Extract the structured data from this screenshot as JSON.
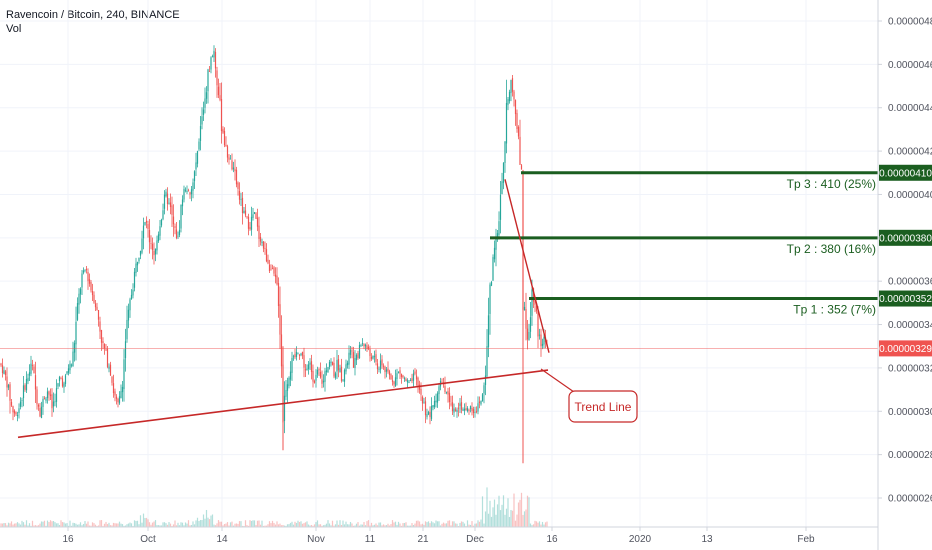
{
  "header": {
    "title": "Ravencoin / Bitcoin, 240, BINANCE",
    "volume_label": "Vol"
  },
  "colors": {
    "up": "#26a69a",
    "down": "#ef5350",
    "target_line": "#1b5e20",
    "trend_line": "#c62828",
    "price_line": "#ef5350",
    "badge_last": "#ef5350"
  },
  "chart_data": {
    "type": "candlestick",
    "symbol": "Ravencoin / Bitcoin",
    "interval": "240",
    "exchange": "BINANCE",
    "ylim": [
      2.45e-06,
      4.9e-06
    ],
    "y_ticks": [
      "0.00000260",
      "0.00000280",
      "0.00000300",
      "0.00000320",
      "0.00000340",
      "0.00000360",
      "0.00000380",
      "0.00000400",
      "0.00000420",
      "0.00000440",
      "0.00000460",
      "0.00000480"
    ],
    "x_ticks": [
      "16",
      "Oct",
      "14",
      "Nov",
      "11",
      "21",
      "Dec",
      "16",
      "2020",
      "13",
      "Feb"
    ],
    "last_price": "0.00000329",
    "targets": [
      {
        "name": "Tp 3",
        "price": "0.00000410",
        "label": "Tp 3 : 410 (25%)"
      },
      {
        "name": "Tp 2",
        "price": "0.00000380",
        "label": "Tp 2 : 380 (16%)"
      },
      {
        "name": "Tp 1",
        "price": "0.00000352",
        "label": "Tp 1 : 352 (7%)"
      }
    ],
    "trend_line": {
      "label": "Trend Line",
      "from": [
        "Sep 9",
        2.88e-06
      ],
      "to": [
        "Dec 15",
        3.19e-06
      ]
    },
    "downtrend_line": {
      "from": [
        "Dec 5",
        4.07e-06
      ],
      "to": [
        "Dec 15",
        3.27e-06
      ]
    },
    "price_path": [
      [
        0,
        322
      ],
      [
        4,
        318
      ],
      [
        8,
        312
      ],
      [
        12,
        301
      ],
      [
        16,
        298
      ],
      [
        20,
        304
      ],
      [
        24,
        310
      ],
      [
        28,
        316
      ],
      [
        32,
        322
      ],
      [
        36,
        308
      ],
      [
        40,
        300
      ],
      [
        44,
        306
      ],
      [
        48,
        310
      ],
      [
        52,
        302
      ],
      [
        56,
        308
      ],
      [
        60,
        316
      ],
      [
        64,
        312
      ],
      [
        68,
        320
      ],
      [
        72,
        322
      ],
      [
        74,
        330
      ],
      [
        78,
        350
      ],
      [
        82,
        362
      ],
      [
        86,
        366
      ],
      [
        90,
        358
      ],
      [
        94,
        352
      ],
      [
        98,
        344
      ],
      [
        102,
        332
      ],
      [
        106,
        326
      ],
      [
        110,
        320
      ],
      [
        114,
        308
      ],
      [
        118,
        302
      ],
      [
        122,
        312
      ],
      [
        126,
        336
      ],
      [
        130,
        350
      ],
      [
        134,
        362
      ],
      [
        138,
        372
      ],
      [
        142,
        382
      ],
      [
        146,
        388
      ],
      [
        150,
        378
      ],
      [
        154,
        370
      ],
      [
        158,
        382
      ],
      [
        162,
        392
      ],
      [
        166,
        400
      ],
      [
        170,
        394
      ],
      [
        174,
        384
      ],
      [
        178,
        380
      ],
      [
        182,
        398
      ],
      [
        186,
        404
      ],
      [
        190,
        398
      ],
      [
        194,
        408
      ],
      [
        198,
        420
      ],
      [
        202,
        436
      ],
      [
        206,
        448
      ],
      [
        210,
        460
      ],
      [
        214,
        466
      ],
      [
        218,
        448
      ],
      [
        222,
        432
      ],
      [
        226,
        420
      ],
      [
        230,
        416
      ],
      [
        234,
        410
      ],
      [
        238,
        402
      ],
      [
        242,
        394
      ],
      [
        246,
        388
      ],
      [
        250,
        386
      ],
      [
        254,
        392
      ],
      [
        258,
        382
      ],
      [
        262,
        378
      ],
      [
        266,
        372
      ],
      [
        270,
        366
      ],
      [
        274,
        362
      ],
      [
        278,
        356
      ],
      [
        281,
        330
      ],
      [
        283,
        300
      ],
      [
        286,
        312
      ],
      [
        290,
        320
      ],
      [
        294,
        324
      ],
      [
        298,
        328
      ],
      [
        302,
        326
      ],
      [
        306,
        318
      ],
      [
        310,
        322
      ],
      [
        314,
        314
      ],
      [
        318,
        318
      ],
      [
        322,
        312
      ],
      [
        326,
        320
      ],
      [
        330,
        324
      ],
      [
        334,
        318
      ],
      [
        338,
        322
      ],
      [
        342,
        316
      ],
      [
        346,
        320
      ],
      [
        350,
        328
      ],
      [
        354,
        322
      ],
      [
        358,
        326
      ],
      [
        362,
        332
      ],
      [
        366,
        330
      ],
      [
        370,
        326
      ],
      [
        374,
        324
      ],
      [
        378,
        320
      ],
      [
        382,
        322
      ],
      [
        386,
        318
      ],
      [
        390,
        316
      ],
      [
        394,
        314
      ],
      [
        398,
        318
      ],
      [
        402,
        316
      ],
      [
        406,
        314
      ],
      [
        410,
        312
      ],
      [
        414,
        316
      ],
      [
        418,
        312
      ],
      [
        422,
        306
      ],
      [
        426,
        300
      ],
      [
        430,
        298
      ],
      [
        434,
        304
      ],
      [
        438,
        310
      ],
      [
        442,
        314
      ],
      [
        446,
        308
      ],
      [
        450,
        302
      ],
      [
        454,
        300
      ],
      [
        458,
        304
      ],
      [
        462,
        302
      ],
      [
        466,
        300
      ],
      [
        470,
        302
      ],
      [
        474,
        300
      ],
      [
        478,
        302
      ],
      [
        482,
        306
      ],
      [
        486,
        322
      ],
      [
        488,
        340
      ],
      [
        490,
        356
      ],
      [
        492,
        362
      ],
      [
        494,
        376
      ],
      [
        496,
        384
      ],
      [
        498,
        380
      ],
      [
        500,
        394
      ],
      [
        502,
        404
      ],
      [
        504,
        414
      ],
      [
        506,
        436
      ],
      [
        508,
        446
      ],
      [
        510,
        454
      ],
      [
        512,
        450
      ],
      [
        514,
        444
      ],
      [
        516,
        436
      ],
      [
        518,
        426
      ],
      [
        520,
        418
      ],
      [
        522,
        410
      ],
      [
        523,
        362
      ],
      [
        524,
        350
      ],
      [
        526,
        340
      ],
      [
        528,
        332
      ],
      [
        530,
        346
      ],
      [
        532,
        354
      ],
      [
        534,
        352
      ],
      [
        536,
        346
      ],
      [
        538,
        338
      ],
      [
        540,
        332
      ],
      [
        542,
        330
      ],
      [
        544,
        334
      ],
      [
        546,
        332
      ],
      [
        548,
        329
      ]
    ]
  }
}
